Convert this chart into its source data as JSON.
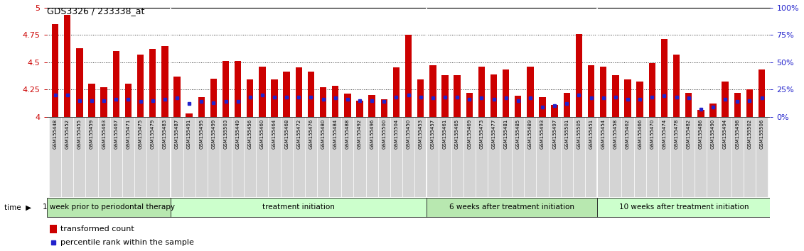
{
  "title": "GDS3326 / 233338_at",
  "ylim": [
    4.0,
    5.0
  ],
  "yticks_left": [
    4.0,
    4.25,
    4.5,
    4.75,
    5.0
  ],
  "ytick_labels_left": [
    "4",
    "4.25",
    "4.5",
    "4.75",
    "5"
  ],
  "right_ytick_pcts": [
    0,
    25,
    50,
    75,
    100
  ],
  "right_ylabels": [
    "0%",
    "25%",
    "50%",
    "75%",
    "100%"
  ],
  "categories": [
    "GSM155448",
    "GSM155452",
    "GSM155455",
    "GSM155459",
    "GSM155463",
    "GSM155467",
    "GSM155471",
    "GSM155475",
    "GSM155479",
    "GSM155483",
    "GSM155487",
    "GSM155491",
    "GSM155495",
    "GSM155499",
    "GSM155503",
    "GSM155449",
    "GSM155456",
    "GSM155460",
    "GSM155464",
    "GSM155468",
    "GSM155472",
    "GSM155476",
    "GSM155480",
    "GSM155484",
    "GSM155488",
    "GSM155492",
    "GSM155496",
    "GSM155500",
    "GSM155504",
    "GSM155450",
    "GSM155453",
    "GSM155457",
    "GSM155461",
    "GSM155465",
    "GSM155469",
    "GSM155473",
    "GSM155477",
    "GSM155481",
    "GSM155485",
    "GSM155489",
    "GSM155493",
    "GSM155497",
    "GSM155501",
    "GSM155505",
    "GSM155451",
    "GSM155454",
    "GSM155458",
    "GSM155462",
    "GSM155466",
    "GSM155470",
    "GSM155474",
    "GSM155478",
    "GSM155482",
    "GSM155486",
    "GSM155490",
    "GSM155494",
    "GSM155498",
    "GSM155502",
    "GSM155506"
  ],
  "red_values": [
    4.85,
    4.93,
    4.63,
    4.3,
    4.27,
    4.6,
    4.3,
    4.57,
    4.62,
    4.65,
    4.37,
    4.03,
    4.18,
    4.35,
    4.51,
    4.51,
    4.34,
    4.46,
    4.34,
    4.41,
    4.45,
    4.41,
    4.27,
    4.28,
    4.21,
    4.15,
    4.2,
    4.16,
    4.45,
    4.75,
    4.34,
    4.47,
    4.38,
    4.38,
    4.22,
    4.46,
    4.39,
    4.43,
    4.19,
    4.46,
    4.18,
    4.11,
    4.22,
    4.76,
    4.47,
    4.46,
    4.38,
    4.34,
    4.32,
    4.49,
    4.71,
    4.57,
    4.22,
    4.06,
    4.12,
    4.32,
    4.22,
    4.25,
    4.43
  ],
  "blue_values": [
    4.2,
    4.2,
    4.15,
    4.15,
    4.15,
    4.16,
    4.16,
    4.14,
    4.15,
    4.16,
    4.17,
    4.12,
    4.14,
    4.13,
    4.14,
    4.14,
    4.18,
    4.2,
    4.18,
    4.18,
    4.18,
    4.18,
    4.16,
    4.17,
    4.16,
    4.15,
    4.15,
    4.14,
    4.18,
    4.2,
    4.18,
    4.17,
    4.18,
    4.18,
    4.16,
    4.17,
    4.16,
    4.17,
    4.15,
    4.17,
    4.09,
    4.1,
    4.12,
    4.2,
    4.17,
    4.17,
    4.18,
    4.16,
    4.16,
    4.18,
    4.19,
    4.18,
    4.17,
    4.07,
    4.09,
    4.16,
    4.14,
    4.15,
    4.17
  ],
  "groups": [
    {
      "start": 0,
      "end": 10,
      "label": "1 week prior to periodontal therapy",
      "color": "#b8e8b0"
    },
    {
      "start": 10,
      "end": 31,
      "label": "treatment initiation",
      "color": "#ccffcc"
    },
    {
      "start": 31,
      "end": 45,
      "label": "6 weeks after treatment initiation",
      "color": "#b8e8b0"
    },
    {
      "start": 45,
      "end": 59,
      "label": "10 weeks after treatment initiation",
      "color": "#ccffcc"
    }
  ],
  "bar_color": "#cc0000",
  "dot_color": "#2222cc",
  "axis_left_color": "#cc0000",
  "axis_right_color": "#2222cc",
  "grid_dotted_color": "#333333",
  "xtick_bg": "#d4d4d4",
  "group_border_color": "#222222",
  "title_fontsize": 9,
  "ytick_fontsize": 8,
  "xtick_fontsize": 5.0,
  "group_fontsize": 7.5,
  "legend_fontsize": 8
}
